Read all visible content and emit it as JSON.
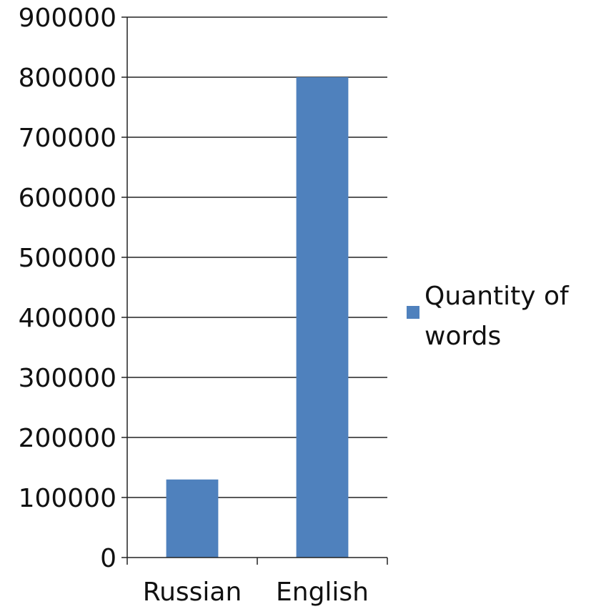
{
  "chart_data": {
    "type": "bar",
    "categories": [
      "Russian",
      "English"
    ],
    "series": [
      {
        "name": "Quantity of words",
        "color": "#4F81BD",
        "values": [
          130000,
          800000
        ]
      }
    ],
    "ylim": [
      0,
      900000
    ],
    "yticks": [
      0,
      100000,
      200000,
      300000,
      400000,
      500000,
      600000,
      700000,
      800000,
      900000
    ],
    "ytick_labels": [
      "0",
      "100000",
      "200000",
      "300000",
      "400000",
      "500000",
      "600000",
      "700000",
      "800000",
      "900000"
    ],
    "grid": true,
    "legend_position": "right",
    "legend_lines": [
      "Quantity of",
      "words"
    ]
  }
}
